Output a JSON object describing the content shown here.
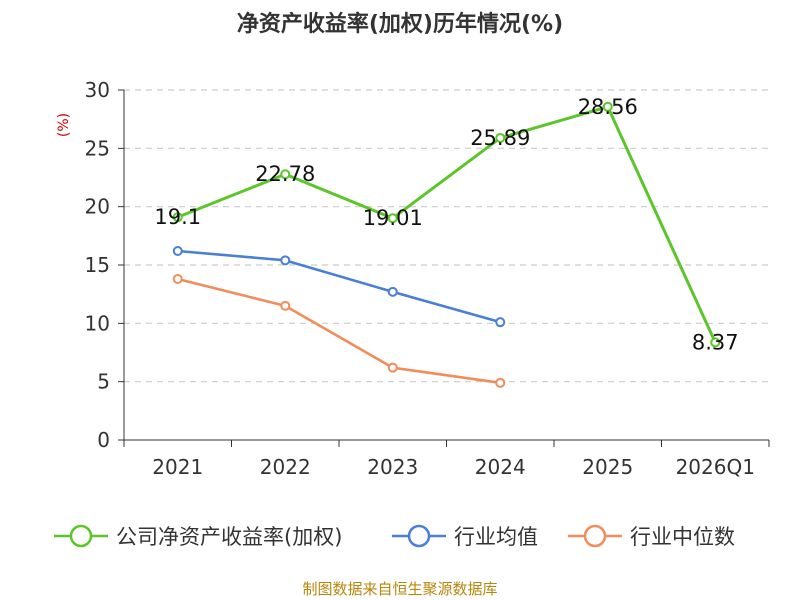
{
  "title": "净资产收益率(加权)历年情况(%)",
  "y_unit": "(%)",
  "source": "制图数据来自恒生聚源数据库",
  "colors": {
    "company": "#5bc52a",
    "industry_avg": "#4a7fd6",
    "industry_median": "#f28c5a",
    "unit": "#cc0000",
    "source": "#b8860b"
  },
  "chart_data": {
    "type": "line",
    "title": "净资产收益率(加权)历年情况(%)",
    "xlabel": "",
    "ylabel": "(%)",
    "categories": [
      "2021",
      "2022",
      "2023",
      "2024",
      "2025",
      "2026Q1"
    ],
    "yticks": [
      0,
      5,
      10,
      15,
      20,
      25,
      30
    ],
    "ylim": [
      0,
      30
    ],
    "grid": true,
    "legend_position": "bottom",
    "series": [
      {
        "name": "公司净资产收益率(加权)",
        "values": [
          19.1,
          22.78,
          19.01,
          25.89,
          28.56,
          8.37
        ],
        "labels": [
          "19.1",
          "22.78",
          "19.01",
          "25.89",
          "28.56",
          "8.37"
        ]
      },
      {
        "name": "行业均值",
        "values": [
          16.2,
          15.4,
          12.7,
          10.1,
          null,
          null
        ]
      },
      {
        "name": "行业中位数",
        "values": [
          13.8,
          11.5,
          6.2,
          4.9,
          null,
          null
        ]
      }
    ]
  }
}
